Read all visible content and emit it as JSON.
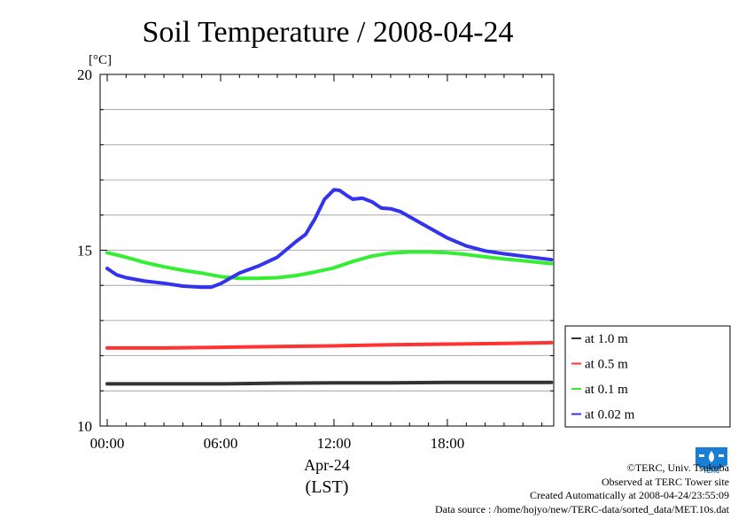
{
  "chart_data": {
    "type": "line",
    "title": "Soil Temperature / 2008-04-24",
    "y_unit": "[°C]",
    "xlabel_date": "Apr-24",
    "xlabel": "(LST)",
    "x_ticks": [
      "00:00",
      "06:00",
      "12:00",
      "18:00"
    ],
    "x_range_hours": [
      0,
      23.5
    ],
    "ylim": [
      10,
      20
    ],
    "y_ticks": [
      10,
      15,
      20
    ],
    "grid": true,
    "legend_position": "right",
    "series": [
      {
        "name": "at 1.0 m",
        "color": "#333333",
        "x": [
          0,
          3,
          6,
          9,
          12,
          15,
          18,
          21,
          23.5
        ],
        "y": [
          11.2,
          11.2,
          11.2,
          11.22,
          11.23,
          11.23,
          11.24,
          11.24,
          11.24
        ]
      },
      {
        "name": "at 0.5 m",
        "color": "#ff3333",
        "x": [
          0,
          3,
          6,
          9,
          12,
          15,
          18,
          21,
          23.5
        ],
        "y": [
          12.22,
          12.22,
          12.24,
          12.26,
          12.28,
          12.31,
          12.33,
          12.35,
          12.37
        ]
      },
      {
        "name": "at 0.1 m",
        "color": "#33ee33",
        "x": [
          0,
          1,
          2,
          3,
          4,
          5,
          6,
          7,
          8,
          9,
          10,
          11,
          12,
          13,
          14,
          15,
          16,
          17,
          18,
          19,
          20,
          21,
          22,
          23.5
        ],
        "y": [
          14.93,
          14.8,
          14.65,
          14.53,
          14.43,
          14.35,
          14.25,
          14.2,
          14.2,
          14.22,
          14.28,
          14.38,
          14.5,
          14.68,
          14.83,
          14.92,
          14.95,
          14.95,
          14.93,
          14.88,
          14.81,
          14.75,
          14.7,
          14.62
        ]
      },
      {
        "name": "at 0.02 m",
        "color": "#3333ee",
        "x": [
          0,
          0.5,
          1,
          2,
          3,
          4,
          5,
          5.5,
          6,
          6.5,
          7,
          8,
          9,
          10,
          10.5,
          11,
          11.5,
          12,
          12.3,
          12.7,
          13,
          13.5,
          14,
          14.5,
          15,
          15.5,
          16,
          17,
          18,
          19,
          20,
          21,
          22,
          23.5
        ],
        "y": [
          14.48,
          14.3,
          14.22,
          14.12,
          14.06,
          13.98,
          13.95,
          13.95,
          14.05,
          14.2,
          14.35,
          14.55,
          14.8,
          15.25,
          15.45,
          15.9,
          16.45,
          16.72,
          16.7,
          16.55,
          16.45,
          16.48,
          16.38,
          16.2,
          16.18,
          16.1,
          15.95,
          15.65,
          15.35,
          15.12,
          14.98,
          14.9,
          14.83,
          14.73
        ]
      }
    ]
  },
  "credits": {
    "line1": "©TERC, Univ. Tsukuba",
    "line2": "Observed at TERC Tower site",
    "line3": "Created Automatically at 2008-04-24/23:55:09",
    "line4": "Data source : /home/hojyo/new/TERC-data/sorted_data/MET.10s.dat"
  },
  "logo": {
    "icon": "terc-logo-icon",
    "text": "TERC",
    "color": "#1a7fd4"
  }
}
